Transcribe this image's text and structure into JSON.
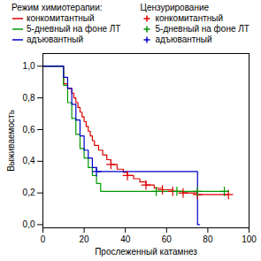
{
  "chart_data": {
    "type": "line",
    "xlabel": "Прослеженный катамнез",
    "ylabel": "Выживаемость",
    "xlim": [
      0,
      100
    ],
    "ylim": [
      -0.02,
      1.08
    ],
    "xticks": [
      0,
      20,
      40,
      60,
      80,
      100
    ],
    "yticks": [
      {
        "value": 0.0,
        "label": "0,0"
      },
      {
        "value": 0.2,
        "label": "0,2"
      },
      {
        "value": 0.4,
        "label": "0,4"
      },
      {
        "value": 0.6,
        "label": "0,6"
      },
      {
        "value": 0.8,
        "label": "0,8"
      },
      {
        "value": 1.0,
        "label": "1,0"
      }
    ],
    "grid": false,
    "legend": "top",
    "series": [
      {
        "name": "конкомитантный",
        "legend_title": "Режим химиотерапии:",
        "type": "line",
        "color": "#dd0000",
        "x": [
          0,
          10,
          10,
          12,
          12,
          14,
          14,
          15,
          15,
          16,
          16,
          17,
          17,
          18,
          18,
          19,
          19,
          20,
          20,
          21,
          21,
          22,
          22,
          23,
          23,
          24,
          24,
          25,
          25,
          27,
          27,
          29,
          29,
          31,
          31,
          33,
          33,
          36,
          36,
          39,
          39,
          41,
          41,
          44,
          44,
          47,
          47,
          50,
          50,
          54,
          54,
          58,
          58,
          63,
          63,
          68,
          68,
          75,
          75,
          90
        ],
        "values": [
          1.0,
          1.0,
          0.89,
          0.89,
          0.86,
          0.86,
          0.83,
          0.83,
          0.8,
          0.8,
          0.77,
          0.77,
          0.74,
          0.74,
          0.71,
          0.71,
          0.68,
          0.68,
          0.65,
          0.65,
          0.62,
          0.62,
          0.59,
          0.59,
          0.56,
          0.56,
          0.53,
          0.53,
          0.5,
          0.5,
          0.47,
          0.47,
          0.44,
          0.44,
          0.41,
          0.41,
          0.38,
          0.38,
          0.35,
          0.35,
          0.33,
          0.33,
          0.31,
          0.31,
          0.29,
          0.29,
          0.27,
          0.27,
          0.25,
          0.25,
          0.23,
          0.23,
          0.22,
          0.22,
          0.21,
          0.21,
          0.2,
          0.2,
          0.19,
          0.19
        ]
      },
      {
        "name": "5-дневный на фоне ЛТ",
        "legend_title": "Режим химиотерапии:",
        "type": "line",
        "color": "#009900",
        "x": [
          0,
          10,
          10,
          12,
          12,
          14,
          14,
          16,
          16,
          18,
          18,
          20,
          20,
          22,
          22,
          24,
          24,
          26,
          26,
          28,
          28,
          30,
          30,
          90
        ],
        "values": [
          1.0,
          1.0,
          0.88,
          0.88,
          0.77,
          0.77,
          0.67,
          0.67,
          0.57,
          0.57,
          0.48,
          0.48,
          0.42,
          0.42,
          0.36,
          0.36,
          0.31,
          0.31,
          0.26,
          0.26,
          0.21,
          0.21,
          0.21,
          0.21
        ]
      },
      {
        "name": "адъювантный",
        "legend_title": "Режим химиотерапии:",
        "type": "line",
        "color": "#0000cc",
        "x": [
          0,
          10,
          10,
          12,
          12,
          14,
          14,
          16,
          16,
          18,
          18,
          20,
          20,
          22,
          22,
          24,
          24,
          26,
          26,
          75,
          75,
          76
        ],
        "values": [
          1.0,
          1.0,
          0.93,
          0.93,
          0.86,
          0.86,
          0.76,
          0.76,
          0.66,
          0.66,
          0.56,
          0.56,
          0.47,
          0.47,
          0.42,
          0.42,
          0.36,
          0.36,
          0.335,
          0.335,
          0.0,
          0.0
        ]
      },
      {
        "name": "конкомитантный",
        "legend_title": "Цензурирование",
        "type": "scatter",
        "marker": "plus",
        "color": "#dd0000",
        "x": [
          33,
          41,
          50,
          58,
          63,
          68,
          75,
          90
        ],
        "values": [
          0.38,
          0.31,
          0.25,
          0.22,
          0.21,
          0.2,
          0.19,
          0.19
        ]
      },
      {
        "name": "5-дневный на фоне ЛТ",
        "legend_title": "Цензурирование",
        "type": "scatter",
        "marker": "plus",
        "color": "#009900",
        "x": [
          55,
          65,
          75,
          88
        ],
        "values": [
          0.21,
          0.21,
          0.21,
          0.21
        ]
      },
      {
        "name": "адъювантный",
        "legend_title": "Цензурирование",
        "type": "scatter",
        "marker": "plus",
        "color": "#0000cc",
        "x": [
          26
        ],
        "values": [
          0.335
        ]
      }
    ]
  }
}
